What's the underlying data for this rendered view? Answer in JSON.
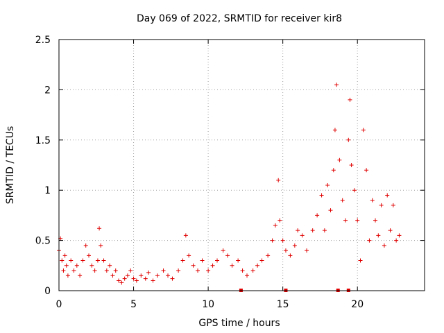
{
  "chart_data": {
    "type": "scatter",
    "title": "Day 069 of 2022, SRMTID for receiver kir8",
    "xlabel": "GPS time / hours",
    "ylabel": "SRMTID / TECUs",
    "xlim": [
      0,
      24.5
    ],
    "ylim": [
      0,
      2.5
    ],
    "x_ticks": [
      0,
      5,
      10,
      15,
      20
    ],
    "x_tick_labels": [
      "0",
      "5",
      "10",
      "15",
      "20"
    ],
    "y_ticks": [
      0,
      0.5,
      1,
      1.5,
      2,
      2.5
    ],
    "y_tick_labels": [
      "0",
      "0.5",
      "1",
      "1.5",
      "2",
      "2.5"
    ],
    "grid": true,
    "marker": "+",
    "color": "#e00000",
    "series": [
      {
        "name": "SRMTID",
        "x": [
          0.0,
          0.1,
          0.2,
          0.3,
          0.4,
          0.5,
          0.6,
          0.8,
          1.0,
          1.2,
          1.4,
          1.6,
          1.8,
          2.0,
          2.2,
          2.4,
          2.6,
          2.7,
          2.8,
          3.0,
          3.2,
          3.4,
          3.6,
          3.8,
          4.0,
          4.2,
          4.4,
          4.6,
          4.8,
          5.0,
          5.2,
          5.5,
          5.8,
          6.0,
          6.3,
          6.6,
          7.0,
          7.3,
          7.6,
          8.0,
          8.3,
          8.5,
          8.7,
          9.0,
          9.3,
          9.6,
          10.0,
          10.3,
          10.6,
          11.0,
          11.3,
          11.6,
          12.0,
          12.3,
          12.6,
          13.0,
          13.3,
          13.6,
          14.0,
          14.3,
          14.5,
          14.7,
          14.8,
          15.0,
          15.2,
          15.5,
          15.8,
          16.0,
          16.3,
          16.6,
          17.0,
          17.3,
          17.6,
          17.8,
          18.0,
          18.2,
          18.4,
          18.5,
          18.6,
          18.8,
          19.0,
          19.2,
          19.4,
          19.5,
          19.6,
          19.8,
          20.0,
          20.2,
          20.4,
          20.6,
          20.8,
          21.0,
          21.2,
          21.4,
          21.6,
          21.8,
          22.0,
          22.2,
          22.4,
          22.6,
          22.8
        ],
        "y": [
          0.4,
          0.52,
          0.3,
          0.2,
          0.35,
          0.25,
          0.15,
          0.3,
          0.2,
          0.25,
          0.15,
          0.3,
          0.45,
          0.35,
          0.25,
          0.2,
          0.3,
          0.62,
          0.45,
          0.3,
          0.2,
          0.25,
          0.15,
          0.2,
          0.1,
          0.08,
          0.12,
          0.15,
          0.2,
          0.12,
          0.1,
          0.15,
          0.12,
          0.18,
          0.1,
          0.15,
          0.2,
          0.15,
          0.12,
          0.2,
          0.3,
          0.55,
          0.35,
          0.25,
          0.2,
          0.3,
          0.2,
          0.25,
          0.3,
          0.4,
          0.35,
          0.25,
          0.3,
          0.2,
          0.15,
          0.2,
          0.25,
          0.3,
          0.35,
          0.5,
          0.65,
          1.1,
          0.7,
          0.5,
          0.4,
          0.35,
          0.45,
          0.6,
          0.55,
          0.4,
          0.6,
          0.75,
          0.95,
          0.6,
          1.05,
          0.8,
          1.2,
          1.6,
          2.05,
          1.3,
          0.9,
          0.7,
          1.5,
          1.9,
          1.25,
          1.0,
          0.7,
          0.3,
          1.6,
          1.2,
          0.5,
          0.9,
          0.7,
          0.55,
          0.85,
          0.45,
          0.95,
          0.6,
          0.85,
          0.5,
          0.55
        ]
      }
    ],
    "annotations": [
      {
        "kind": "gap-marker",
        "x": 12.2,
        "y": 0
      },
      {
        "kind": "gap-marker",
        "x": 15.2,
        "y": 0
      },
      {
        "kind": "gap-marker",
        "x": 18.7,
        "y": 0
      },
      {
        "kind": "gap-marker",
        "x": 19.4,
        "y": 0
      }
    ]
  }
}
